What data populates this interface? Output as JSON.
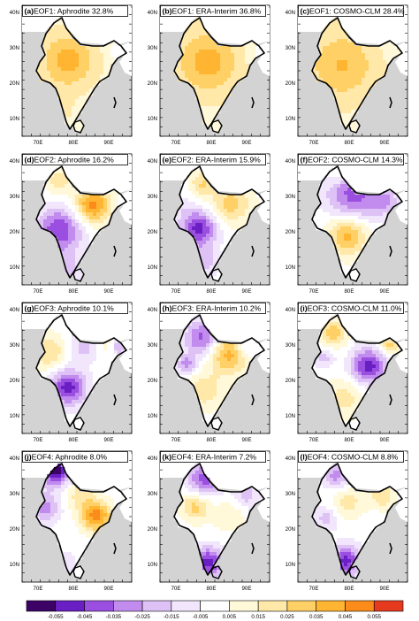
{
  "figure": {
    "panels": [
      {
        "id": "a",
        "label": "(a)",
        "title": "EOF1: Aphrodite 32.8%",
        "pattern": "eof1_a"
      },
      {
        "id": "b",
        "label": "(b)",
        "title": "EOF1: ERA-Interim 36.8%",
        "pattern": "eof1_b"
      },
      {
        "id": "c",
        "label": "(c)",
        "title": "EOF1: COSMO-CLM 28.4%",
        "pattern": "eof1_c"
      },
      {
        "id": "d",
        "label": "(d)",
        "title": "EOF2: Aphrodite 16.2%",
        "pattern": "eof2_d"
      },
      {
        "id": "e",
        "label": "(e)",
        "title": "EOF2: ERA-Interim 15.9%",
        "pattern": "eof2_e"
      },
      {
        "id": "f",
        "label": "(f)",
        "title": "EOF2: COSMO-CLM 14.3%",
        "pattern": "eof2_f"
      },
      {
        "id": "g",
        "label": "(g)",
        "title": "EOF3: Aphrodite 10.1%",
        "pattern": "eof3_g"
      },
      {
        "id": "h",
        "label": "(h)",
        "title": "EOF3: ERA-Interim 10.2%",
        "pattern": "eof3_h"
      },
      {
        "id": "i",
        "label": "(i)",
        "title": "EOF3: COSMO-CLM 11.0%",
        "pattern": "eof3_i"
      },
      {
        "id": "j",
        "label": "(j)",
        "title": "EOF4: Aphrodite 8.0%",
        "pattern": "eof4_j"
      },
      {
        "id": "k",
        "label": "(k)",
        "title": "EOF4: ERA-Interim 7.2%",
        "pattern": "eof4_k"
      },
      {
        "id": "l",
        "label": "(l)",
        "title": "EOF4: COSMO-CLM 8.8%",
        "pattern": "eof4_l"
      }
    ],
    "lon_ticks": [
      "70E",
      "80E",
      "90E"
    ],
    "lat_ticks": [
      "40N",
      "30N",
      "20N",
      "10N"
    ],
    "ocean_color": "#d3d3d3",
    "boundary_color": "#000000",
    "colorbar": {
      "labels": [
        "-0.055",
        "-0.045",
        "-0.035",
        "-0.025",
        "-0.015",
        "-0.005",
        "0.005",
        "0.015",
        "0.025",
        "0.035",
        "0.045",
        "0.055"
      ],
      "colors": [
        "#3d0266",
        "#6a1fc4",
        "#9b4fe0",
        "#c18cee",
        "#dec2f6",
        "#f1e6fb",
        "#ffffff",
        "#fff8d9",
        "#ffe8a8",
        "#ffd066",
        "#ffb432",
        "#fb8c1a",
        "#e63a1e"
      ]
    }
  }
}
